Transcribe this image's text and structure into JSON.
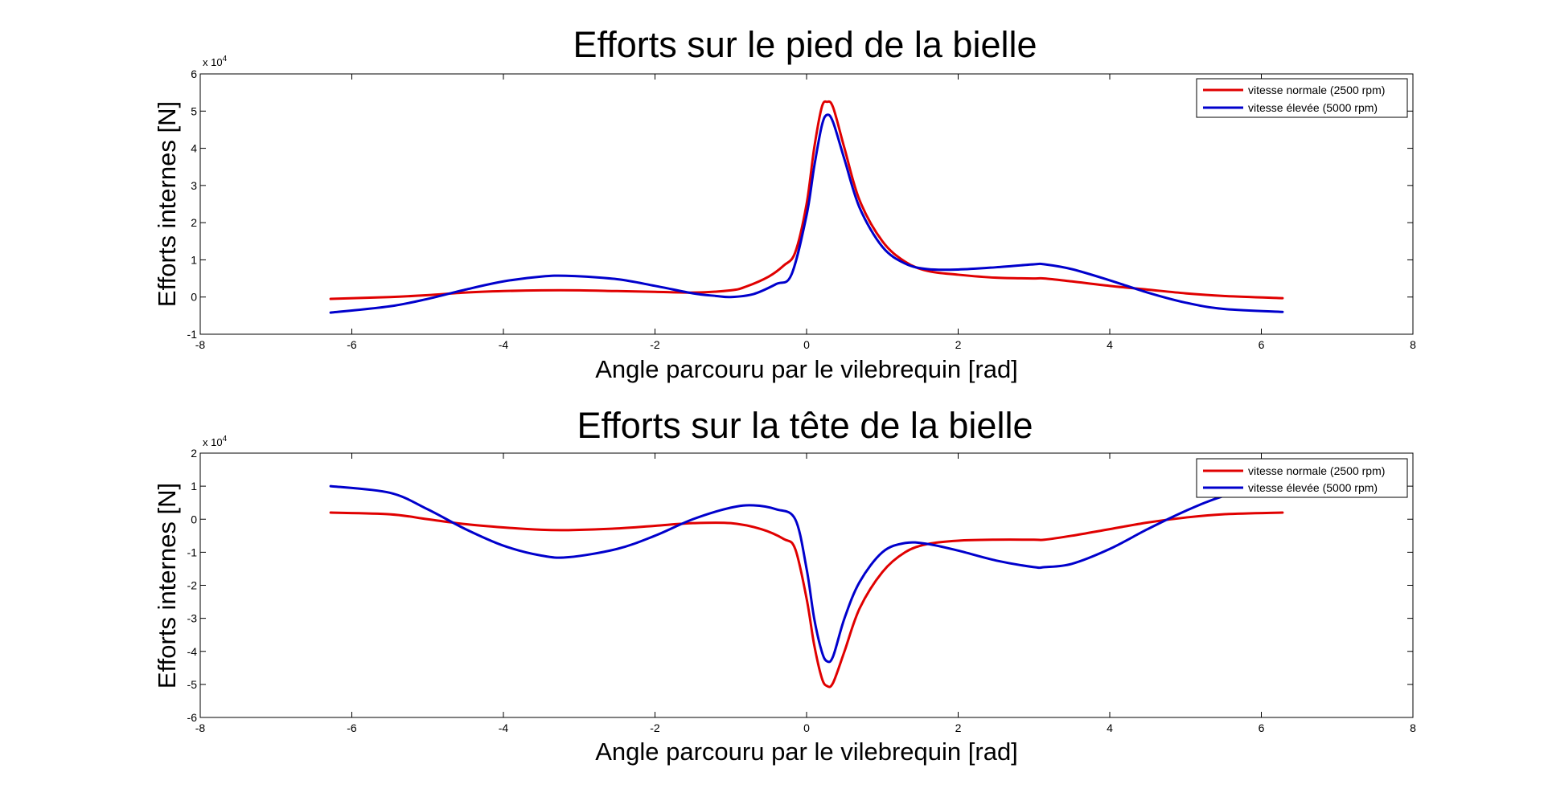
{
  "chart_data": [
    {
      "type": "line",
      "title": "Efforts sur le pied de la bielle",
      "xlabel": "Angle parcouru par le vilebrequin [rad]",
      "ylabel": "Efforts internes [N]",
      "y_multiplier_label": "x 10",
      "y_multiplier_exponent": "4",
      "xlim": [
        -8,
        8
      ],
      "ylim": [
        -1,
        6
      ],
      "xticks": [
        -8,
        -6,
        -4,
        -2,
        0,
        2,
        4,
        6,
        8
      ],
      "yticks": [
        -1,
        0,
        1,
        2,
        3,
        4,
        5,
        6
      ],
      "legend_position": "top-right",
      "series": [
        {
          "name": "vitesse normale (2500 rpm)",
          "color": "#e00000",
          "x": [
            -6.28,
            -5.5,
            -5.0,
            -4.5,
            -4.0,
            -3.5,
            -3.0,
            -2.5,
            -2.0,
            -1.5,
            -1.0,
            -0.8,
            -0.5,
            -0.3,
            -0.15,
            0.0,
            0.1,
            0.2,
            0.27,
            0.35,
            0.5,
            0.7,
            1.0,
            1.3,
            1.6,
            2.0,
            2.5,
            3.0,
            3.14,
            3.5,
            4.0,
            4.5,
            5.0,
            5.5,
            6.28
          ],
          "y": [
            -0.05,
            0.0,
            0.05,
            0.12,
            0.16,
            0.18,
            0.18,
            0.16,
            0.14,
            0.12,
            0.18,
            0.28,
            0.55,
            0.85,
            1.2,
            2.5,
            4.0,
            5.1,
            5.25,
            5.1,
            4.0,
            2.6,
            1.5,
            0.95,
            0.7,
            0.6,
            0.52,
            0.5,
            0.5,
            0.42,
            0.3,
            0.2,
            0.1,
            0.03,
            -0.03
          ]
        },
        {
          "name": "vitesse élevée (5000 rpm)",
          "color": "#0000cc",
          "x": [
            -6.28,
            -5.5,
            -5.0,
            -4.5,
            -4.0,
            -3.5,
            -3.14,
            -2.5,
            -2.0,
            -1.5,
            -1.2,
            -1.0,
            -0.7,
            -0.4,
            -0.2,
            0.0,
            0.1,
            0.2,
            0.27,
            0.35,
            0.5,
            0.7,
            1.0,
            1.3,
            1.6,
            2.0,
            2.5,
            3.0,
            3.14,
            3.5,
            4.0,
            4.5,
            5.0,
            5.5,
            6.28
          ],
          "y": [
            -0.42,
            -0.25,
            -0.05,
            0.2,
            0.42,
            0.55,
            0.57,
            0.48,
            0.3,
            0.1,
            0.03,
            0.0,
            0.08,
            0.35,
            0.6,
            2.2,
            3.5,
            4.6,
            4.9,
            4.7,
            3.7,
            2.4,
            1.35,
            0.9,
            0.75,
            0.74,
            0.8,
            0.88,
            0.88,
            0.75,
            0.45,
            0.12,
            -0.15,
            -0.32,
            -0.4
          ]
        }
      ]
    },
    {
      "type": "line",
      "title": "Efforts sur la tête de la bielle",
      "xlabel": "Angle parcouru par le vilebrequin [rad]",
      "ylabel": "Efforts internes [N]",
      "y_multiplier_label": "x 10",
      "y_multiplier_exponent": "4",
      "xlim": [
        -8,
        8
      ],
      "ylim": [
        -6,
        2
      ],
      "xticks": [
        -8,
        -6,
        -4,
        -2,
        0,
        2,
        4,
        6,
        8
      ],
      "yticks": [
        -6,
        -5,
        -4,
        -3,
        -2,
        -1,
        0,
        1,
        2
      ],
      "legend_position": "top-right",
      "series": [
        {
          "name": "vitesse normale (2500 rpm)",
          "color": "#e00000",
          "x": [
            -6.28,
            -5.5,
            -5.0,
            -4.5,
            -4.0,
            -3.5,
            -3.14,
            -2.5,
            -2.0,
            -1.5,
            -1.0,
            -0.6,
            -0.3,
            -0.15,
            0.0,
            0.1,
            0.2,
            0.27,
            0.35,
            0.5,
            0.7,
            1.0,
            1.3,
            1.6,
            2.0,
            2.5,
            3.0,
            3.14,
            3.5,
            4.0,
            4.5,
            5.0,
            5.5,
            6.28
          ],
          "y": [
            0.2,
            0.15,
            0.0,
            -0.15,
            -0.25,
            -0.32,
            -0.33,
            -0.28,
            -0.2,
            -0.12,
            -0.12,
            -0.3,
            -0.6,
            -0.9,
            -2.4,
            -3.8,
            -4.8,
            -5.05,
            -4.95,
            -4.0,
            -2.7,
            -1.6,
            -1.0,
            -0.75,
            -0.65,
            -0.62,
            -0.62,
            -0.62,
            -0.5,
            -0.3,
            -0.1,
            0.05,
            0.15,
            0.2
          ]
        },
        {
          "name": "vitesse élevée (5000 rpm)",
          "color": "#0000cc",
          "x": [
            -6.28,
            -5.5,
            -5.0,
            -4.5,
            -4.0,
            -3.5,
            -3.14,
            -2.5,
            -2.0,
            -1.5,
            -1.0,
            -0.7,
            -0.4,
            -0.15,
            0.0,
            0.1,
            0.2,
            0.27,
            0.35,
            0.5,
            0.7,
            1.0,
            1.3,
            1.6,
            2.0,
            2.5,
            3.0,
            3.14,
            3.5,
            4.0,
            4.5,
            5.0,
            5.5,
            6.28
          ],
          "y": [
            1.0,
            0.8,
            0.3,
            -0.3,
            -0.8,
            -1.1,
            -1.15,
            -0.9,
            -0.5,
            0.0,
            0.35,
            0.42,
            0.3,
            0.0,
            -1.5,
            -3.0,
            -4.0,
            -4.3,
            -4.15,
            -3.0,
            -1.9,
            -1.0,
            -0.72,
            -0.75,
            -0.95,
            -1.25,
            -1.45,
            -1.45,
            -1.35,
            -0.9,
            -0.3,
            0.25,
            0.7,
            1.2
          ]
        }
      ]
    }
  ]
}
